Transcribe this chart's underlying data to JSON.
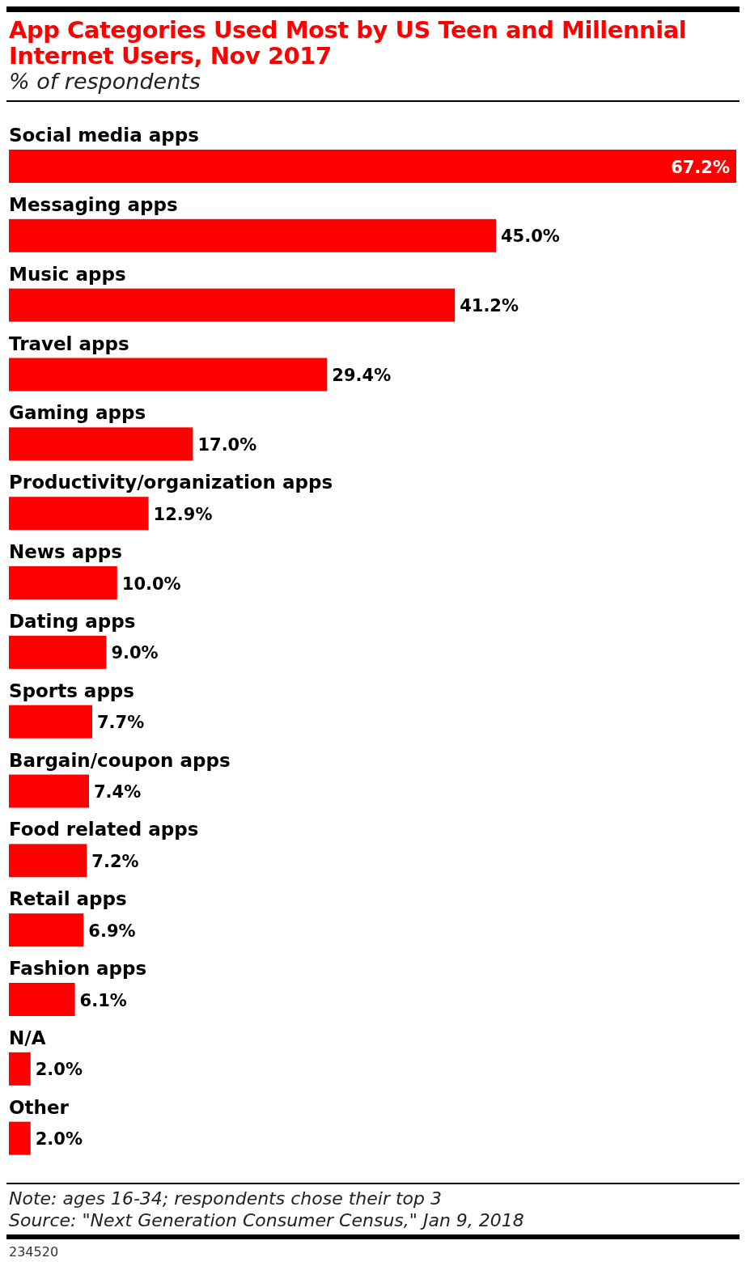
{
  "chart_data": {
    "type": "bar",
    "orientation": "horizontal",
    "title": "App Categories Used Most by US Teen and Millennial Internet Users, Nov 2017",
    "subtitle": "% of respondents",
    "categories": [
      "Social media apps",
      "Messaging apps",
      "Music apps",
      "Travel apps",
      "Gaming apps",
      "Productivity/organization apps",
      "News apps",
      "Dating apps",
      "Sports apps",
      "Bargain/coupon apps",
      "Food related apps",
      "Retail apps",
      "Fashion apps",
      "N/A",
      "Other"
    ],
    "values": [
      67.2,
      45.0,
      41.2,
      29.4,
      17.0,
      12.9,
      10.0,
      9.0,
      7.7,
      7.4,
      7.2,
      6.9,
      6.1,
      2.0,
      2.0
    ],
    "value_labels": [
      "67.2%",
      "45.0%",
      "41.2%",
      "29.4%",
      "17.0%",
      "12.9%",
      "10.0%",
      "9.0%",
      "7.7%",
      "7.4%",
      "7.2%",
      "6.9%",
      "6.1%",
      "2.0%",
      "2.0%"
    ],
    "color": "#ff0000",
    "annotations": [
      "Note: ages 16-34; respondents chose their top 3",
      "Source: \"Next Generation Consumer Census,\" Jan 9, 2018",
      "234520"
    ]
  }
}
